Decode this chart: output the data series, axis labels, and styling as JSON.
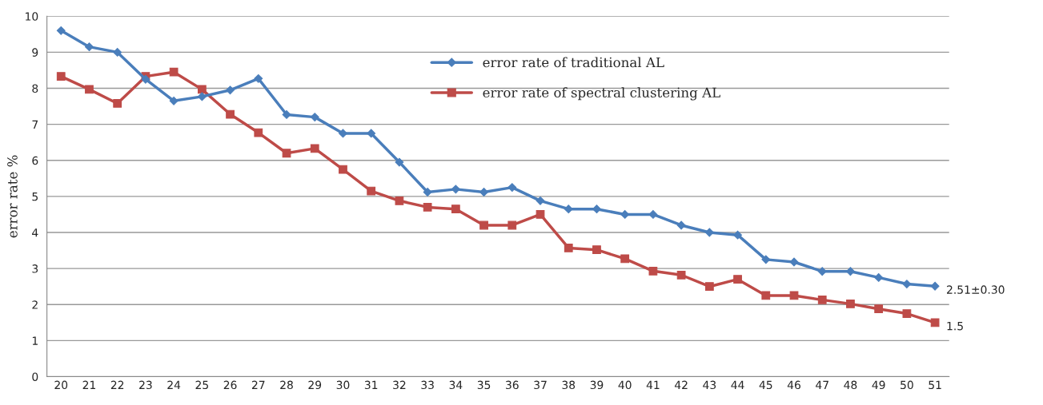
{
  "chart_data": {
    "type": "line",
    "ylabel": "error rate %",
    "categories": [
      "20",
      "21",
      "22",
      "23",
      "24",
      "25",
      "26",
      "27",
      "28",
      "29",
      "30",
      "31",
      "32",
      "33",
      "34",
      "35",
      "36",
      "37",
      "38",
      "39",
      "40",
      "41",
      "42",
      "43",
      "44",
      "45",
      "46",
      "47",
      "48",
      "49",
      "50",
      "51"
    ],
    "series": [
      {
        "name": "error rate of traditional AL",
        "color": "#4a7ebb",
        "marker": "diamond",
        "values": [
          9.6,
          9.15,
          9.0,
          8.25,
          7.65,
          7.77,
          7.95,
          8.27,
          7.27,
          7.2,
          6.75,
          6.75,
          5.95,
          5.12,
          5.2,
          5.12,
          5.25,
          4.88,
          4.65,
          4.65,
          4.5,
          4.5,
          4.2,
          4.0,
          3.93,
          3.25,
          3.18,
          2.92,
          2.92,
          2.75,
          2.57,
          2.51
        ]
      },
      {
        "name": "error rate of spectral clustering AL",
        "color": "#be4b48",
        "marker": "square",
        "values": [
          8.33,
          7.97,
          7.58,
          8.33,
          8.45,
          7.97,
          7.28,
          6.77,
          6.2,
          6.33,
          5.75,
          5.15,
          4.88,
          4.7,
          4.65,
          4.2,
          4.2,
          4.5,
          3.57,
          3.52,
          3.27,
          2.93,
          2.82,
          2.5,
          2.7,
          2.25,
          2.25,
          2.13,
          2.02,
          1.88,
          1.75,
          1.5
        ]
      }
    ],
    "ylim": [
      0,
      10
    ],
    "yticks": [
      0,
      1,
      2,
      3,
      4,
      5,
      6,
      7,
      8,
      9,
      10
    ],
    "grid": "y",
    "legend": "top right",
    "line_style": "solid",
    "annotations": [
      {
        "text": "2.51±0.30",
        "x": "51",
        "y": 2.51
      },
      {
        "text": "1.5",
        "x": "51",
        "y": 1.5
      }
    ]
  }
}
